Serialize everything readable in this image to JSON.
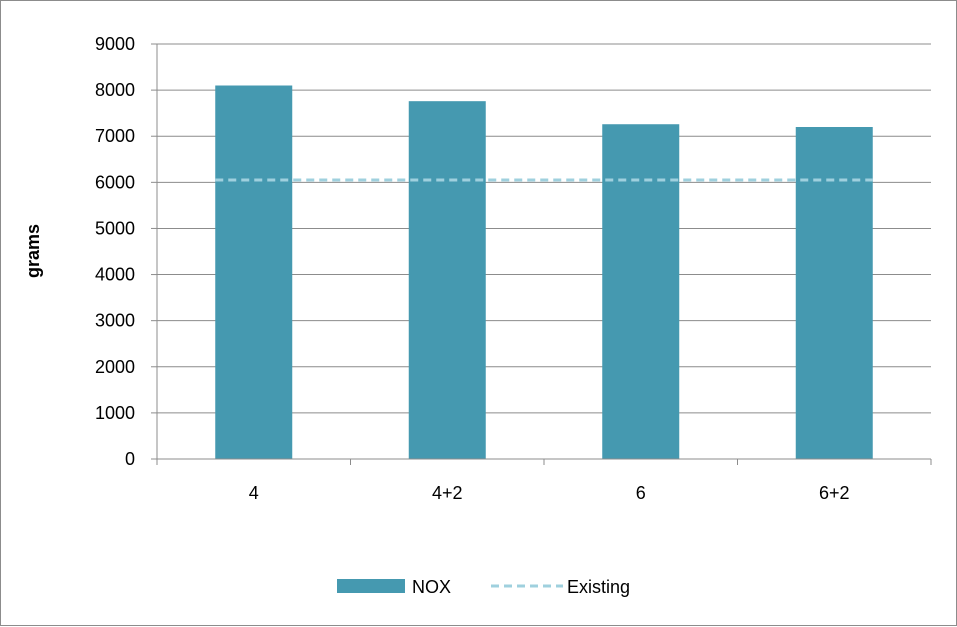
{
  "chart_data": {
    "type": "bar",
    "title": "",
    "xlabel": "",
    "ylabel": "grams",
    "categories": [
      "4",
      "4+2",
      "6",
      "6+2"
    ],
    "ylim": [
      0,
      9000
    ],
    "yticks": [
      0,
      1000,
      2000,
      3000,
      4000,
      5000,
      6000,
      7000,
      8000,
      9000
    ],
    "grid": true,
    "legend_position": "bottom",
    "series": [
      {
        "name": "NOX",
        "kind": "bar",
        "color": "#4599B0",
        "values": [
          8100,
          7760,
          7260,
          7200
        ]
      },
      {
        "name": "Existing",
        "kind": "dashed-line",
        "color": "#9FD0DE",
        "values": [
          6050,
          6050,
          6050,
          6050
        ]
      }
    ]
  }
}
